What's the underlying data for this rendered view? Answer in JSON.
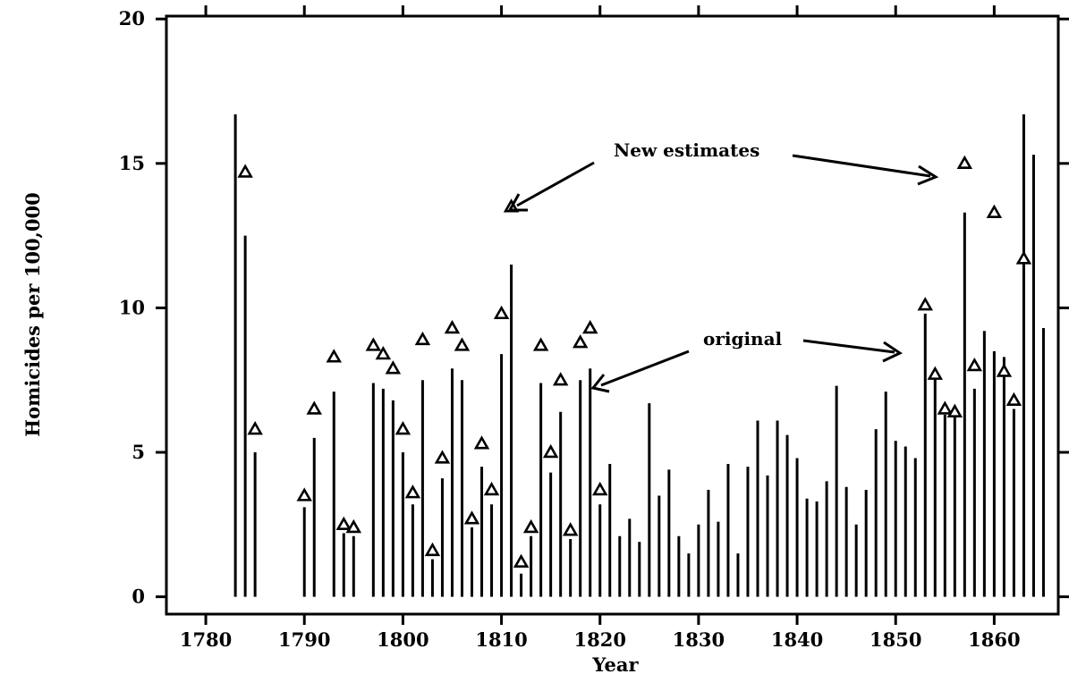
{
  "chart_data": {
    "type": "scatter",
    "title": "",
    "xlabel": "Year",
    "ylabel": "Homicides per 100,000",
    "xlim": [
      1776,
      1866.5
    ],
    "ylim": [
      -0.6,
      20.1
    ],
    "x_ticks": [
      1780,
      1790,
      1800,
      1810,
      1820,
      1830,
      1840,
      1850,
      1860
    ],
    "y_ticks": [
      0,
      5,
      10,
      15,
      20
    ],
    "grid": false,
    "legend": "none",
    "series": [
      {
        "label_key": "original",
        "style": "vertical lines from zero",
        "color": "#000000",
        "points": [
          [
            1783,
            16.7
          ],
          [
            1784,
            12.5
          ],
          [
            1785,
            5.0
          ],
          [
            1790,
            3.1
          ],
          [
            1791,
            5.5
          ],
          [
            1793,
            7.1
          ],
          [
            1794,
            2.2
          ],
          [
            1795,
            2.1
          ],
          [
            1797,
            7.4
          ],
          [
            1798,
            7.2
          ],
          [
            1799,
            6.8
          ],
          [
            1800,
            5.0
          ],
          [
            1801,
            3.2
          ],
          [
            1802,
            7.5
          ],
          [
            1803,
            1.3
          ],
          [
            1804,
            4.1
          ],
          [
            1805,
            7.9
          ],
          [
            1806,
            7.5
          ],
          [
            1807,
            2.4
          ],
          [
            1808,
            4.5
          ],
          [
            1809,
            3.2
          ],
          [
            1810,
            8.4
          ],
          [
            1811,
            11.5
          ],
          [
            1812,
            0.8
          ],
          [
            1813,
            2.1
          ],
          [
            1814,
            7.4
          ],
          [
            1815,
            4.3
          ],
          [
            1816,
            6.4
          ],
          [
            1817,
            2.0
          ],
          [
            1818,
            7.5
          ],
          [
            1819,
            7.9
          ],
          [
            1820,
            3.2
          ],
          [
            1821,
            4.6
          ],
          [
            1822,
            2.1
          ],
          [
            1823,
            2.7
          ],
          [
            1824,
            1.9
          ],
          [
            1825,
            6.7
          ],
          [
            1826,
            3.5
          ],
          [
            1827,
            4.4
          ],
          [
            1828,
            2.1
          ],
          [
            1829,
            1.5
          ],
          [
            1830,
            2.5
          ],
          [
            1831,
            3.7
          ],
          [
            1832,
            2.6
          ],
          [
            1833,
            4.6
          ],
          [
            1834,
            1.5
          ],
          [
            1835,
            4.5
          ],
          [
            1836,
            6.1
          ],
          [
            1837,
            4.2
          ],
          [
            1838,
            6.1
          ],
          [
            1839,
            5.6
          ],
          [
            1840,
            4.8
          ],
          [
            1841,
            3.4
          ],
          [
            1842,
            3.3
          ],
          [
            1843,
            4.0
          ],
          [
            1844,
            7.3
          ],
          [
            1845,
            3.8
          ],
          [
            1846,
            2.5
          ],
          [
            1847,
            3.7
          ],
          [
            1848,
            5.8
          ],
          [
            1849,
            7.1
          ],
          [
            1850,
            5.4
          ],
          [
            1851,
            5.2
          ],
          [
            1852,
            4.8
          ],
          [
            1853,
            9.8
          ],
          [
            1854,
            7.7
          ],
          [
            1855,
            6.3
          ],
          [
            1856,
            6.3
          ],
          [
            1857,
            13.3
          ],
          [
            1858,
            7.2
          ],
          [
            1859,
            9.2
          ],
          [
            1860,
            8.5
          ],
          [
            1861,
            8.3
          ],
          [
            1862,
            6.5
          ],
          [
            1863,
            16.7
          ],
          [
            1864,
            15.3
          ],
          [
            1865,
            9.3
          ]
        ]
      },
      {
        "label_key": "new",
        "style": "open triangle markers",
        "color": "#000000",
        "points": [
          [
            1784,
            14.7
          ],
          [
            1785,
            5.8
          ],
          [
            1790,
            3.5
          ],
          [
            1791,
            6.5
          ],
          [
            1793,
            8.3
          ],
          [
            1794,
            2.5
          ],
          [
            1795,
            2.4
          ],
          [
            1797,
            8.7
          ],
          [
            1798,
            8.4
          ],
          [
            1799,
            7.9
          ],
          [
            1800,
            5.8
          ],
          [
            1801,
            3.6
          ],
          [
            1802,
            8.9
          ],
          [
            1803,
            1.6
          ],
          [
            1804,
            4.8
          ],
          [
            1805,
            9.3
          ],
          [
            1806,
            8.7
          ],
          [
            1807,
            2.7
          ],
          [
            1808,
            5.3
          ],
          [
            1809,
            3.7
          ],
          [
            1810,
            9.8
          ],
          [
            1811,
            13.5
          ],
          [
            1812,
            1.2
          ],
          [
            1813,
            2.4
          ],
          [
            1814,
            8.7
          ],
          [
            1815,
            5.0
          ],
          [
            1816,
            7.5
          ],
          [
            1817,
            2.3
          ],
          [
            1818,
            8.8
          ],
          [
            1819,
            9.3
          ],
          [
            1820,
            3.7
          ],
          [
            1853,
            10.1
          ],
          [
            1854,
            7.7
          ],
          [
            1855,
            6.5
          ],
          [
            1856,
            6.4
          ],
          [
            1857,
            15.0
          ],
          [
            1858,
            8.0
          ],
          [
            1860,
            13.3
          ],
          [
            1861,
            7.8
          ],
          [
            1862,
            6.8
          ],
          [
            1863,
            11.7
          ]
        ]
      }
    ],
    "annotations": [
      {
        "text": "New estimates"
      },
      {
        "text": "original"
      }
    ]
  }
}
